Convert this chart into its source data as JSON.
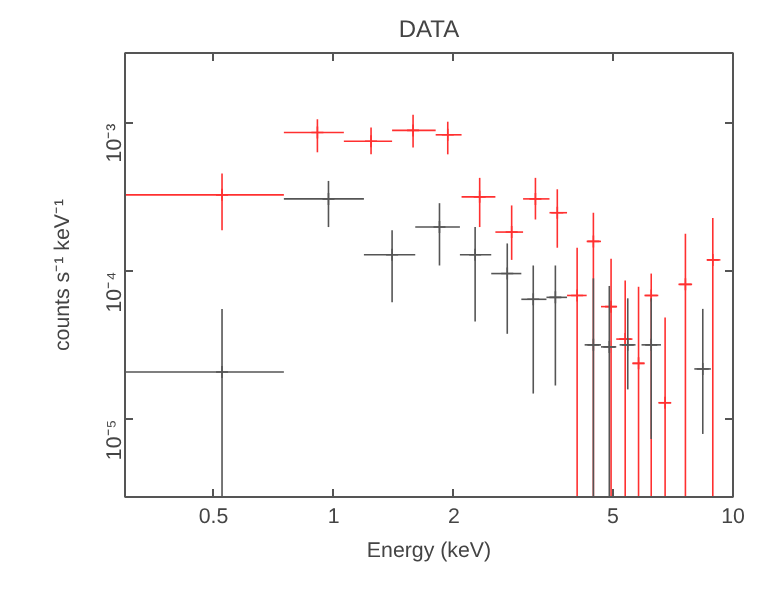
{
  "chart_data": {
    "type": "scatter",
    "title": "DATA",
    "xlabel": "Energy (keV)",
    "ylabel": "counts s⁻¹ keV⁻¹",
    "log": "xy",
    "grid": false,
    "marker": "cross",
    "xlim": [
      0.3,
      10
    ],
    "ylim": [
      3e-06,
      0.003
    ],
    "xticks": [
      0.5,
      1,
      2,
      5,
      10
    ],
    "yticks": [
      {
        "value": 1e-05,
        "label": "10⁻⁵"
      },
      {
        "value": 0.0001,
        "label": "10⁻⁴"
      },
      {
        "value": 0.001,
        "label": "10⁻³"
      }
    ],
    "series": [
      {
        "color": "#ff3030",
        "x": [
          0.525,
          0.91,
          1.24,
          1.58,
          1.93,
          2.32,
          2.79,
          3.2,
          3.63,
          4.07,
          4.47,
          4.95,
          5.37,
          5.8,
          6.24,
          6.76,
          7.6,
          8.9
        ],
        "values": [
          0.00033,
          0.00087,
          0.00076,
          0.0009,
          0.00084,
          0.00032,
          0.000185,
          0.00031,
          0.00025,
          6.9e-05,
          0.00016,
          5.8e-05,
          3.5e-05,
          2.4e-05,
          6.9e-05,
          1.3e-05,
          8.2e-05,
          0.00012
        ],
        "xerrors": [
          [
            0.3,
            0.75
          ],
          [
            0.75,
            1.06
          ],
          [
            1.06,
            1.4
          ],
          [
            1.4,
            1.8
          ],
          [
            1.8,
            2.09
          ],
          [
            2.09,
            2.54
          ],
          [
            2.54,
            2.98
          ],
          [
            2.98,
            3.47
          ],
          [
            3.47,
            3.84
          ],
          [
            3.84,
            4.3
          ],
          [
            4.3,
            4.67
          ],
          [
            4.67,
            5.1
          ],
          [
            5.1,
            5.6
          ],
          [
            5.6,
            6.0
          ],
          [
            6.0,
            6.5
          ],
          [
            6.5,
            7.0
          ],
          [
            7.3,
            7.9
          ],
          [
            8.6,
            9.3
          ]
        ],
        "errors": [
          [
            0.00019,
            0.00046
          ],
          [
            0.00064,
            0.00107
          ],
          [
            0.00062,
            0.00094
          ],
          [
            0.00069,
            0.00115
          ],
          [
            0.00062,
            0.00103
          ],
          [
            0.0002,
            0.00043
          ],
          [
            0.00012,
            0.00028
          ],
          [
            0.000225,
            0.00043
          ],
          [
            0.000145,
            0.00036
          ],
          [
            3e-06,
            0.000145
          ],
          [
            3e-06,
            0.00025
          ],
          [
            3e-06,
            0.000122
          ],
          [
            3e-06,
            8.7e-05
          ],
          [
            3e-06,
            7.9e-05
          ],
          [
            3e-06,
            9.7e-05
          ],
          [
            3e-06,
            4.9e-05
          ],
          [
            3e-06,
            0.00018
          ],
          [
            3e-06,
            0.00023
          ]
        ]
      },
      {
        "color": "#555555",
        "x": [
          0.525,
          0.97,
          1.4,
          1.84,
          2.26,
          2.72,
          3.16,
          3.59,
          4.47,
          4.9,
          5.45,
          6.24,
          8.4
        ],
        "values": [
          2.1e-05,
          0.00031,
          0.00013,
          0.0002,
          0.00013,
          9.7e-05,
          6.5e-05,
          6.7e-05,
          3.2e-05,
          3.1e-05,
          3.2e-05,
          3.2e-05,
          2.2e-05
        ],
        "xerrors": [
          [
            0.3,
            0.75
          ],
          [
            0.75,
            1.19
          ],
          [
            1.19,
            1.6
          ],
          [
            1.6,
            2.07
          ],
          [
            2.07,
            2.48
          ],
          [
            2.48,
            2.95
          ],
          [
            2.95,
            3.41
          ],
          [
            3.41,
            3.84
          ],
          [
            4.25,
            4.67
          ],
          [
            4.67,
            5.1
          ],
          [
            5.2,
            5.7
          ],
          [
            5.9,
            6.6
          ],
          [
            8.0,
            8.8
          ]
        ],
        "errors": [
          [
            3e-06,
            5.6e-05
          ],
          [
            0.0002,
            0.00041
          ],
          [
            6.2e-05,
            0.00019
          ],
          [
            0.00011,
            0.00029
          ],
          [
            4.6e-05,
            0.0002
          ],
          [
            3.8e-05,
            0.000155
          ],
          [
            1.5e-05,
            0.00011
          ],
          [
            1.7e-05,
            0.00011
          ],
          [
            3e-06,
            9e-05
          ],
          [
            3e-06,
            8e-05
          ],
          [
            1.6e-05,
            6.6e-05
          ],
          [
            7.4e-06,
            6.6e-05
          ],
          [
            8e-06,
            5.6e-05
          ]
        ]
      }
    ]
  }
}
